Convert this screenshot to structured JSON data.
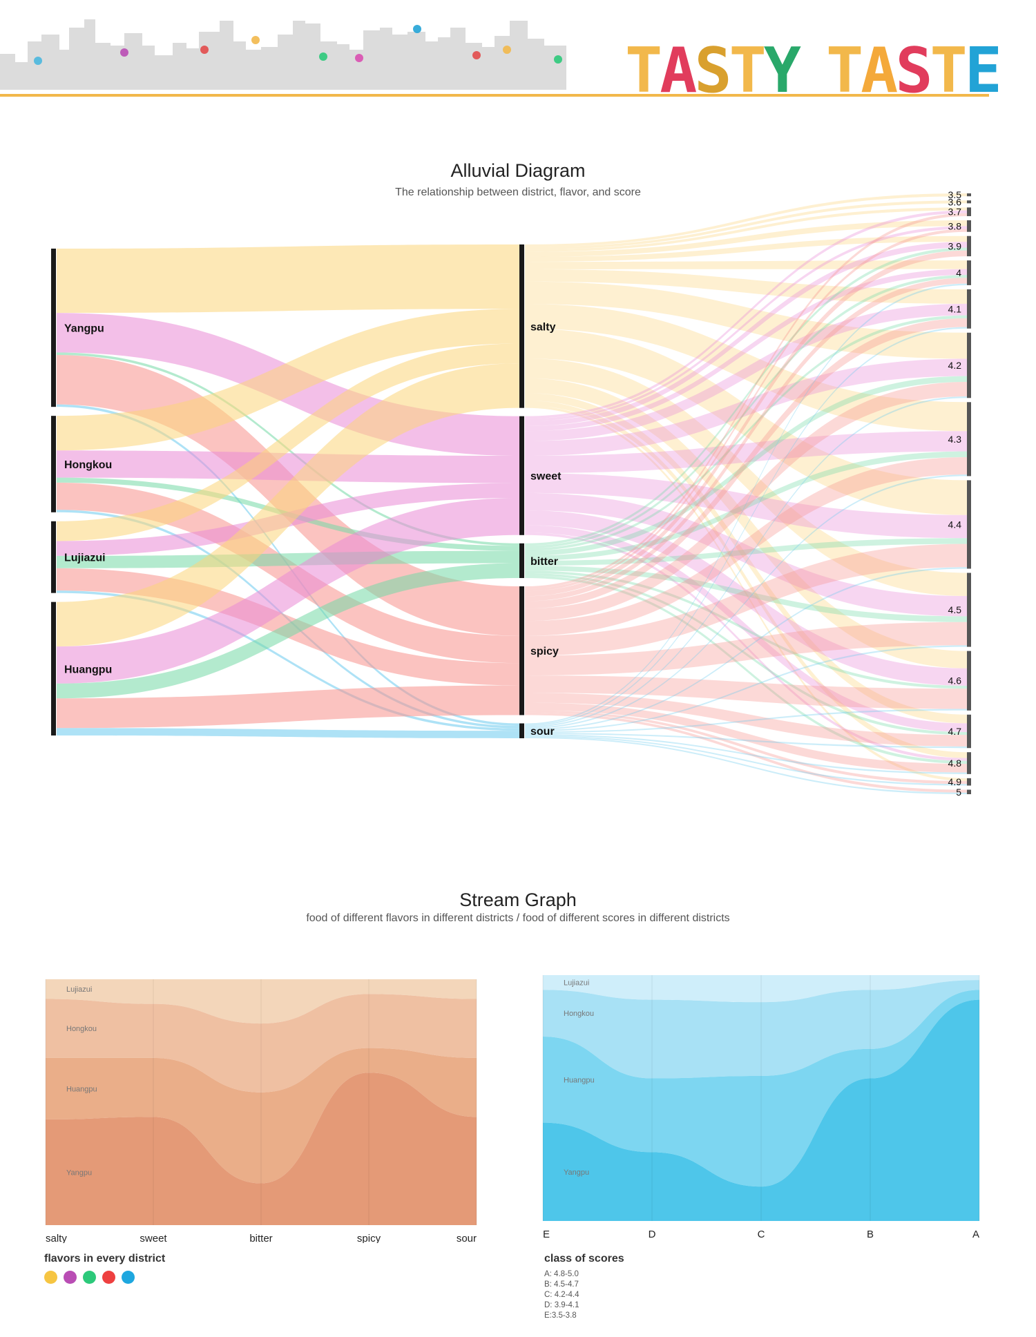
{
  "brand": {
    "words": [
      {
        "letters": [
          {
            "ch": "T",
            "color": "#F2B84B"
          },
          {
            "ch": "A",
            "color": "#E13C5C"
          },
          {
            "ch": "S",
            "color": "#D9A02E"
          },
          {
            "ch": "T",
            "color": "#F2B84B"
          },
          {
            "ch": "Y",
            "color": "#29A86A"
          }
        ]
      },
      {
        "letters": [
          {
            "ch": "T",
            "color": "#F2B84B"
          },
          {
            "ch": "A",
            "color": "#F4A93A"
          },
          {
            "ch": "S",
            "color": "#E13C5C"
          },
          {
            "ch": "T",
            "color": "#F2B84B"
          },
          {
            "ch": "E",
            "color": "#22A3D6"
          }
        ]
      }
    ]
  },
  "colors": {
    "flavors": {
      "salty": "#FBD57A",
      "sweet": "#E98AD6",
      "bitter": "#74D9A6",
      "spicy": "#F7928C",
      "sour": "#6CCBEF"
    },
    "legend_dots": [
      "#F6C542",
      "#B94DB4",
      "#2CC97A",
      "#EE4040",
      "#1EA7DF"
    ],
    "stream_left": [
      "#F3D6BA",
      "#EFC0A2",
      "#EAAE89",
      "#E49A77"
    ],
    "stream_right": [
      "#CFEEFA",
      "#A8E1F5",
      "#7DD6F1",
      "#4EC6EA"
    ],
    "header_line": "#F2B84B",
    "skyline": "#DCDCDC"
  },
  "charts": {
    "alluvial": {
      "title": "Alluvial Diagram",
      "subtitle": "The relationship between district, flavor, and score"
    },
    "stream": {
      "title": "Stream Graph",
      "subtitle": "food of different flavors in different districts / food of different scores in different districts"
    }
  },
  "legend": {
    "flavors_title": "flavors in every district",
    "classes_title": "class of scores",
    "classes": [
      "A: 4.8-5.0",
      "B: 4.5-4.7",
      "C: 4.2-4.4",
      "D: 3.9-4.1",
      "E:3.5-3.8"
    ]
  },
  "chart_data": [
    {
      "type": "alluvial",
      "title": "Alluvial Diagram",
      "subtitle": "The relationship between district, flavor, and score",
      "axes": [
        "district",
        "flavor",
        "score"
      ],
      "districts": [
        "Yangpu",
        "Hongkou",
        "Lujiazui",
        "Huangpu"
      ],
      "flavors": [
        "salty",
        "sweet",
        "bitter",
        "spicy",
        "sour"
      ],
      "scores": [
        "3.5",
        "3.6",
        "3.7",
        "3.8",
        "3.9",
        "4",
        "4.1",
        "4.2",
        "4.3",
        "4.4",
        "4.5",
        "4.6",
        "4.7",
        "4.8",
        "4.9",
        "5"
      ],
      "district_flavor_flows": [
        {
          "district": "Yangpu",
          "flavor": "salty",
          "value": 26
        },
        {
          "district": "Yangpu",
          "flavor": "sweet",
          "value": 16
        },
        {
          "district": "Yangpu",
          "flavor": "bitter",
          "value": 1
        },
        {
          "district": "Yangpu",
          "flavor": "spicy",
          "value": 20
        },
        {
          "district": "Yangpu",
          "flavor": "sour",
          "value": 1
        },
        {
          "district": "Hongkou",
          "flavor": "salty",
          "value": 14
        },
        {
          "district": "Hongkou",
          "flavor": "sweet",
          "value": 11
        },
        {
          "district": "Hongkou",
          "flavor": "bitter",
          "value": 2
        },
        {
          "district": "Hongkou",
          "flavor": "spicy",
          "value": 11
        },
        {
          "district": "Hongkou",
          "flavor": "sour",
          "value": 1
        },
        {
          "district": "Lujiazui",
          "flavor": "salty",
          "value": 8
        },
        {
          "district": "Lujiazui",
          "flavor": "sweet",
          "value": 6
        },
        {
          "district": "Lujiazui",
          "flavor": "bitter",
          "value": 5
        },
        {
          "district": "Lujiazui",
          "flavor": "spicy",
          "value": 9
        },
        {
          "district": "Lujiazui",
          "flavor": "sour",
          "value": 1
        },
        {
          "district": "Huangpu",
          "flavor": "salty",
          "value": 18
        },
        {
          "district": "Huangpu",
          "flavor": "sweet",
          "value": 15
        },
        {
          "district": "Huangpu",
          "flavor": "bitter",
          "value": 6
        },
        {
          "district": "Huangpu",
          "flavor": "spicy",
          "value": 12
        },
        {
          "district": "Huangpu",
          "flavor": "sour",
          "value": 3
        }
      ],
      "flavor_score_weights": {
        "salty": [
          1,
          1,
          1,
          2,
          2,
          3,
          5,
          9,
          10,
          12,
          8,
          6,
          3,
          2,
          1,
          0
        ],
        "sweet": [
          0,
          0,
          1,
          1,
          2,
          2,
          4,
          6,
          7,
          8,
          7,
          6,
          3,
          1,
          0,
          0
        ],
        "bitter": [
          0,
          0,
          0,
          0,
          1,
          1,
          1,
          2,
          2,
          2,
          2,
          1,
          1,
          1,
          0,
          0
        ],
        "spicy": [
          0,
          0,
          1,
          1,
          2,
          2,
          3,
          5,
          6,
          8,
          8,
          7,
          4,
          3,
          1,
          1
        ],
        "sour": [
          0,
          0,
          0,
          0,
          0,
          1,
          1,
          1,
          1,
          1,
          1,
          1,
          1,
          1,
          1,
          1
        ]
      }
    },
    {
      "type": "area",
      "subtype": "stream",
      "title": "Stream Graph",
      "subtitle": "food of different flavors in different districts / food of different scores in different districts",
      "x": [
        "salty",
        "sweet",
        "bitter",
        "spicy",
        "sour"
      ],
      "series": [
        {
          "name": "Lujiazui",
          "values": [
            8,
            10,
            18,
            6,
            8
          ]
        },
        {
          "name": "Hongkou",
          "values": [
            24,
            22,
            28,
            22,
            24
          ]
        },
        {
          "name": "Huangpu",
          "values": [
            25,
            24,
            37,
            10,
            24
          ]
        },
        {
          "name": "Yangpu",
          "values": [
            43,
            44,
            17,
            62,
            44
          ]
        }
      ],
      "legend_title": "flavors in every district"
    },
    {
      "type": "area",
      "subtype": "stream",
      "x": [
        "E",
        "D",
        "C",
        "B",
        "A"
      ],
      "series": [
        {
          "name": "Lujiazui",
          "values": [
            6,
            10,
            11,
            6,
            2
          ]
        },
        {
          "name": "Hongkou",
          "values": [
            19,
            32,
            30,
            24,
            4
          ]
        },
        {
          "name": "Huangpu",
          "values": [
            35,
            30,
            45,
            12,
            4
          ]
        },
        {
          "name": "Yangpu",
          "values": [
            40,
            28,
            14,
            58,
            90
          ]
        }
      ],
      "legend_title": "class of scores"
    }
  ]
}
